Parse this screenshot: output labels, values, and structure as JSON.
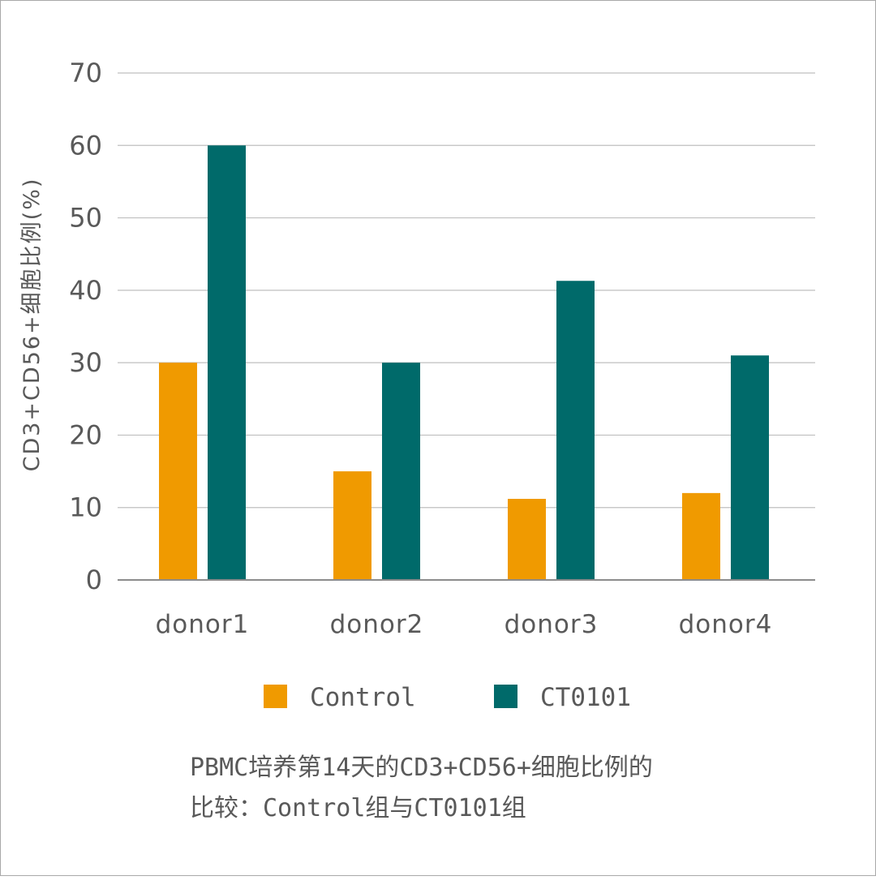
{
  "chart_data": {
    "type": "bar",
    "title": "",
    "xlabel": "",
    "ylabel": "CD3+CD56+细胞比例(%)",
    "categories": [
      "donor1",
      "donor2",
      "donor3",
      "donor4"
    ],
    "series": [
      {
        "name": "Control",
        "color": "#F09A00",
        "values": [
          30,
          15,
          11.2,
          12
        ]
      },
      {
        "name": "CT0101",
        "color": "#006A6A",
        "values": [
          60,
          30,
          41.3,
          31
        ]
      }
    ],
    "ylim": [
      0,
      70
    ],
    "yticks": [
      0,
      10,
      20,
      30,
      40,
      50,
      60,
      70
    ],
    "grid": true,
    "legend": "bottom"
  },
  "caption": {
    "line1": "PBMC培养第14天的CD3+CD56+细胞比例的",
    "line2": "比较：Control组与CT0101组"
  }
}
